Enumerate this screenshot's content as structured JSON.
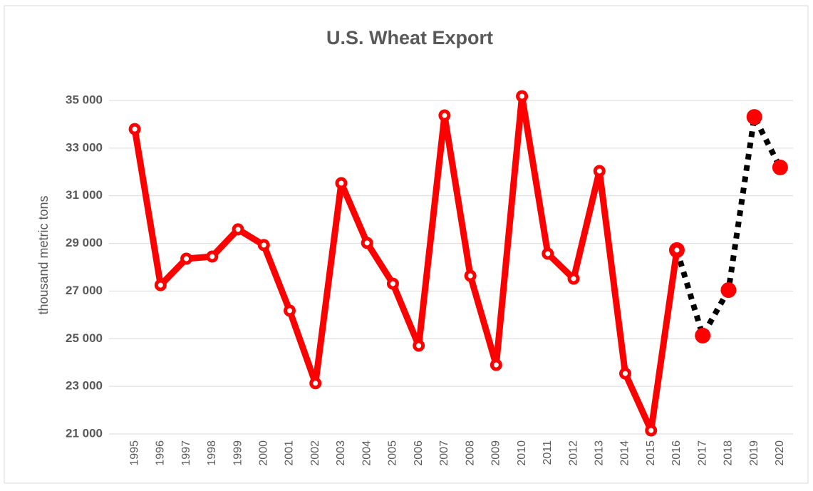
{
  "chart_data": {
    "type": "line",
    "title": "U.S. Wheat Export",
    "y_label": "thousand metric tons",
    "categories": [
      "1995",
      "1996",
      "1997",
      "1998",
      "1999",
      "2000",
      "2001",
      "2002",
      "2003",
      "2004",
      "2005",
      "2006",
      "2007",
      "2008",
      "2009",
      "2010",
      "2011",
      "2012",
      "2013",
      "2014",
      "2015",
      "2016",
      "2017",
      "2018",
      "2019",
      "2020"
    ],
    "series": [
      {
        "color": "#ff0000",
        "line_style": "solid",
        "marker": "ring",
        "values": [
          33800,
          27250,
          28360,
          28450,
          29590,
          28930,
          26180,
          23130,
          31530,
          29020,
          27310,
          24710,
          34370,
          27640,
          23900,
          35180,
          28570,
          27520,
          32040,
          23540,
          21150,
          28720,
          null,
          null,
          null,
          null
        ]
      },
      {
        "color": "#000000",
        "marker_color": "#ff0000",
        "line_style": "dotted",
        "marker": "dot",
        "values": [
          null,
          null,
          null,
          null,
          null,
          null,
          null,
          null,
          null,
          null,
          null,
          null,
          null,
          null,
          null,
          null,
          null,
          null,
          null,
          null,
          null,
          28720,
          25130,
          27040,
          34310,
          32190
        ]
      }
    ],
    "ylim": [
      21000,
      35000
    ],
    "yticks": [
      {
        "value": 21000,
        "label": "21 000"
      },
      {
        "value": 23000,
        "label": "23 000"
      },
      {
        "value": 25000,
        "label": "25 000"
      },
      {
        "value": 27000,
        "label": "27 000"
      },
      {
        "value": 29000,
        "label": "29 000"
      },
      {
        "value": 31000,
        "label": "31 000"
      },
      {
        "value": 33000,
        "label": "33 000"
      },
      {
        "value": 35000,
        "label": "35 000"
      }
    ],
    "grid": true
  }
}
